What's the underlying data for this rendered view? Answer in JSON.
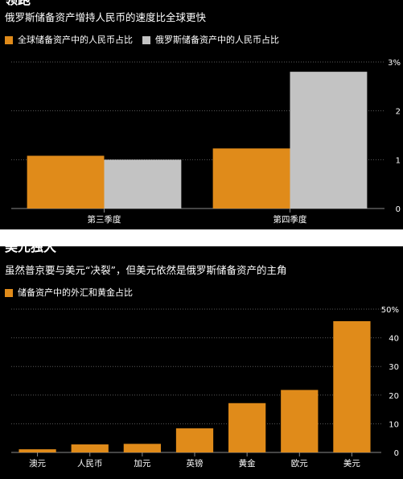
{
  "colors": {
    "orange": "#e08b1a",
    "gray": "#c3c3c3",
    "background": "#000000",
    "grid": "#5a5a5a",
    "text": "#ffffff"
  },
  "chart_data": [
    {
      "type": "bar",
      "title": "领跑",
      "subtitle": "俄罗斯储备资产增持人民币的速度比全球更快",
      "categories": [
        "第三季度",
        "第四季度"
      ],
      "series": [
        {
          "name": "全球储备资产中的人民币占比",
          "color": "#e08b1a",
          "values": [
            1.08,
            1.23
          ]
        },
        {
          "name": "俄罗斯储备资产中的人民币占比",
          "color": "#c3c3c3",
          "values": [
            1.0,
            2.8
          ]
        }
      ],
      "ylim": [
        0,
        3
      ],
      "yticks": [
        0,
        1,
        2,
        3
      ],
      "ytick_labels": [
        "0",
        "1",
        "2",
        "3%"
      ],
      "grid": true,
      "legend": "top-left"
    },
    {
      "type": "bar",
      "title": "美元独大",
      "subtitle": "虽然普京要与美元“决裂”，但美元依然是俄罗斯储备资产的主角",
      "categories": [
        "澳元",
        "人民币",
        "加元",
        "英镑",
        "黄金",
        "欧元",
        "美元"
      ],
      "series": [
        {
          "name": "储备资产中的外汇和黄金占比",
          "color": "#e08b1a",
          "values": [
            1.1,
            2.8,
            3.0,
            8.4,
            17.2,
            21.8,
            45.8
          ]
        }
      ],
      "ylim": [
        0,
        50
      ],
      "yticks": [
        0,
        10,
        20,
        30,
        40,
        50
      ],
      "ytick_labels": [
        "0",
        "10",
        "20",
        "30",
        "40",
        "50%"
      ],
      "grid": true,
      "legend": "top-left"
    }
  ]
}
